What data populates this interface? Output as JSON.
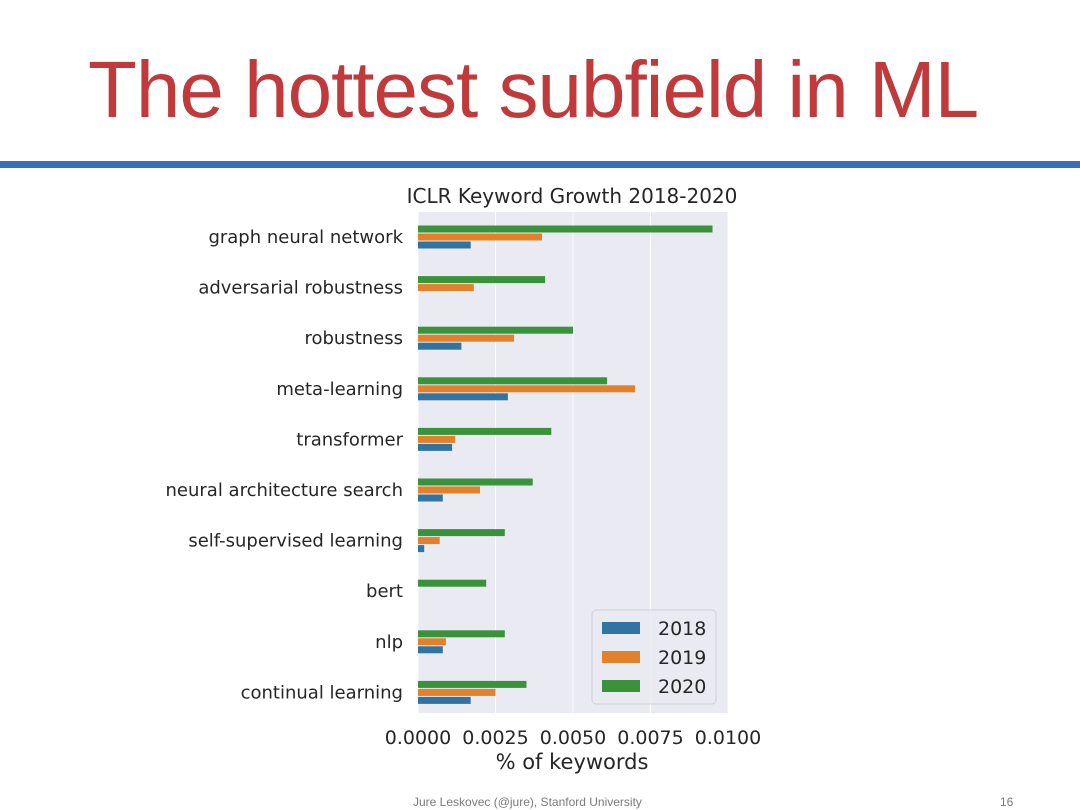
{
  "slide": {
    "title": "The hottest subfield in ML",
    "footer": "Jure Leskovec (@jure), Stanford University",
    "page_number": "16"
  },
  "colors": {
    "title": "#c0393b",
    "rule": "#3a6fb7",
    "plot_bg": "#eaeaf2",
    "series": [
      "#3274a1",
      "#e1812c",
      "#3a923a"
    ]
  },
  "chart_data": {
    "type": "bar",
    "orientation": "horizontal",
    "title": "ICLR Keyword Growth 2018-2020",
    "xlabel": "% of keywords",
    "ylabel": "",
    "xlim": [
      0,
      0.01
    ],
    "xticks": [
      "0.0000",
      "0.0025",
      "0.0050",
      "0.0075",
      "0.0100"
    ],
    "grid": true,
    "legend_position": "lower-right",
    "categories": [
      "graph neural network",
      "adversarial robustness",
      "robustness",
      "meta-learning",
      "transformer",
      "neural architecture search",
      "self-supervised learning",
      "bert",
      "nlp",
      "continual learning"
    ],
    "series": [
      {
        "name": "2018",
        "values": [
          0.0017,
          0.0,
          0.0014,
          0.0029,
          0.0011,
          0.0008,
          0.0002,
          0.0,
          0.0008,
          0.0017
        ]
      },
      {
        "name": "2019",
        "values": [
          0.004,
          0.0018,
          0.0031,
          0.007,
          0.0012,
          0.002,
          0.0007,
          0.0,
          0.0009,
          0.0025
        ]
      },
      {
        "name": "2020",
        "values": [
          0.0095,
          0.0041,
          0.005,
          0.0061,
          0.0043,
          0.0037,
          0.0028,
          0.0022,
          0.0028,
          0.0035
        ]
      }
    ]
  }
}
